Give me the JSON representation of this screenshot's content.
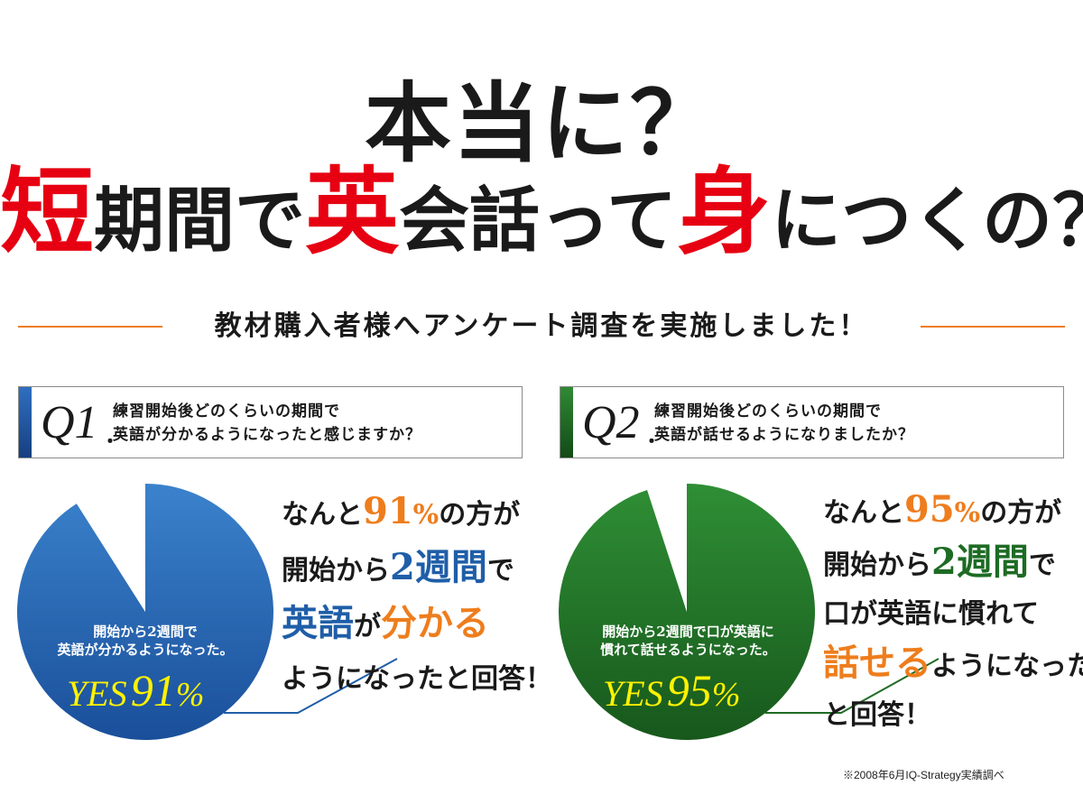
{
  "headline": {
    "line1": "本当に？",
    "line2": [
      {
        "text": "短",
        "red": true,
        "size": "big"
      },
      {
        "text": "期間で",
        "red": false,
        "size": "normal"
      },
      {
        "text": "英",
        "red": true,
        "size": "big"
      },
      {
        "text": "会話って",
        "red": false,
        "size": "normal"
      },
      {
        "text": "身",
        "red": true,
        "size": "big"
      },
      {
        "text": "につくの？",
        "red": false,
        "size": "normal"
      }
    ]
  },
  "subtitle": "教材購入者様へアンケート調査を実施しました！",
  "colors": {
    "orange": "#ee7d1d",
    "red": "#e60012",
    "blue": "#1f5ea8",
    "green": "#1e6b24",
    "yellow": "#fff200"
  },
  "q1": {
    "number": "Q1",
    "text_line1": "練習開始後どのくらいの期間で",
    "text_line2": "英語が分かるようになったと感じますか？",
    "pie_caption_line1": "開始から2週間で",
    "pie_caption_line2": "英語が分かるようになった。",
    "yes_label": "YES",
    "yes_value": "91",
    "yes_unit": "%",
    "result_lines": [
      [
        {
          "text": "なんと",
          "style": "normal"
        },
        {
          "text": "91",
          "style": "big orange"
        },
        {
          "text": "%",
          "style": "normal orange"
        },
        {
          "text": "の方が",
          "style": "normal"
        }
      ],
      [
        {
          "text": "開始から",
          "style": "normal"
        },
        {
          "text": "2週間",
          "style": "big blue"
        },
        {
          "text": "で",
          "style": "normal"
        }
      ],
      [
        {
          "text": "英語",
          "style": "big blue"
        },
        {
          "text": "が",
          "style": "normal"
        },
        {
          "text": "分かる",
          "style": "big orange"
        }
      ],
      [
        {
          "text": "ようになったと回答！",
          "style": "normal"
        }
      ]
    ]
  },
  "q2": {
    "number": "Q2",
    "text_line1": "練習開始後どのくらいの期間で",
    "text_line2": "英語が話せるようになりましたか？",
    "pie_caption_line1": "開始から2週間で口が英語に",
    "pie_caption_line2": "慣れて話せるようになった。",
    "yes_label": "YES",
    "yes_value": "95",
    "yes_unit": "%",
    "result_lines": [
      [
        {
          "text": "なんと",
          "style": "normal"
        },
        {
          "text": "95",
          "style": "big orange"
        },
        {
          "text": "%",
          "style": "normal orange"
        },
        {
          "text": "の方が",
          "style": "normal"
        }
      ],
      [
        {
          "text": "開始から",
          "style": "normal"
        },
        {
          "text": "2週間",
          "style": "big green"
        },
        {
          "text": "で",
          "style": "normal"
        }
      ],
      [
        {
          "text": "口が英語に慣れて",
          "style": "normal"
        }
      ],
      [
        {
          "text": "話せる",
          "style": "big orange"
        },
        {
          "text": "ようになった",
          "style": "normal"
        }
      ],
      [
        {
          "text": "と回答！",
          "style": "normal"
        }
      ]
    ]
  },
  "chart_data": [
    {
      "type": "pie",
      "categories": [
        "YES",
        ""
      ],
      "values": [
        91,
        9
      ],
      "colors": [
        "#1f5ea8",
        "#ffffff"
      ]
    },
    {
      "type": "pie",
      "categories": [
        "YES",
        ""
      ],
      "values": [
        95,
        5
      ],
      "colors": [
        "#1e6b24",
        "#ffffff"
      ]
    }
  ],
  "footnote": "※2008年6月IQ-Strategy実績調べ"
}
